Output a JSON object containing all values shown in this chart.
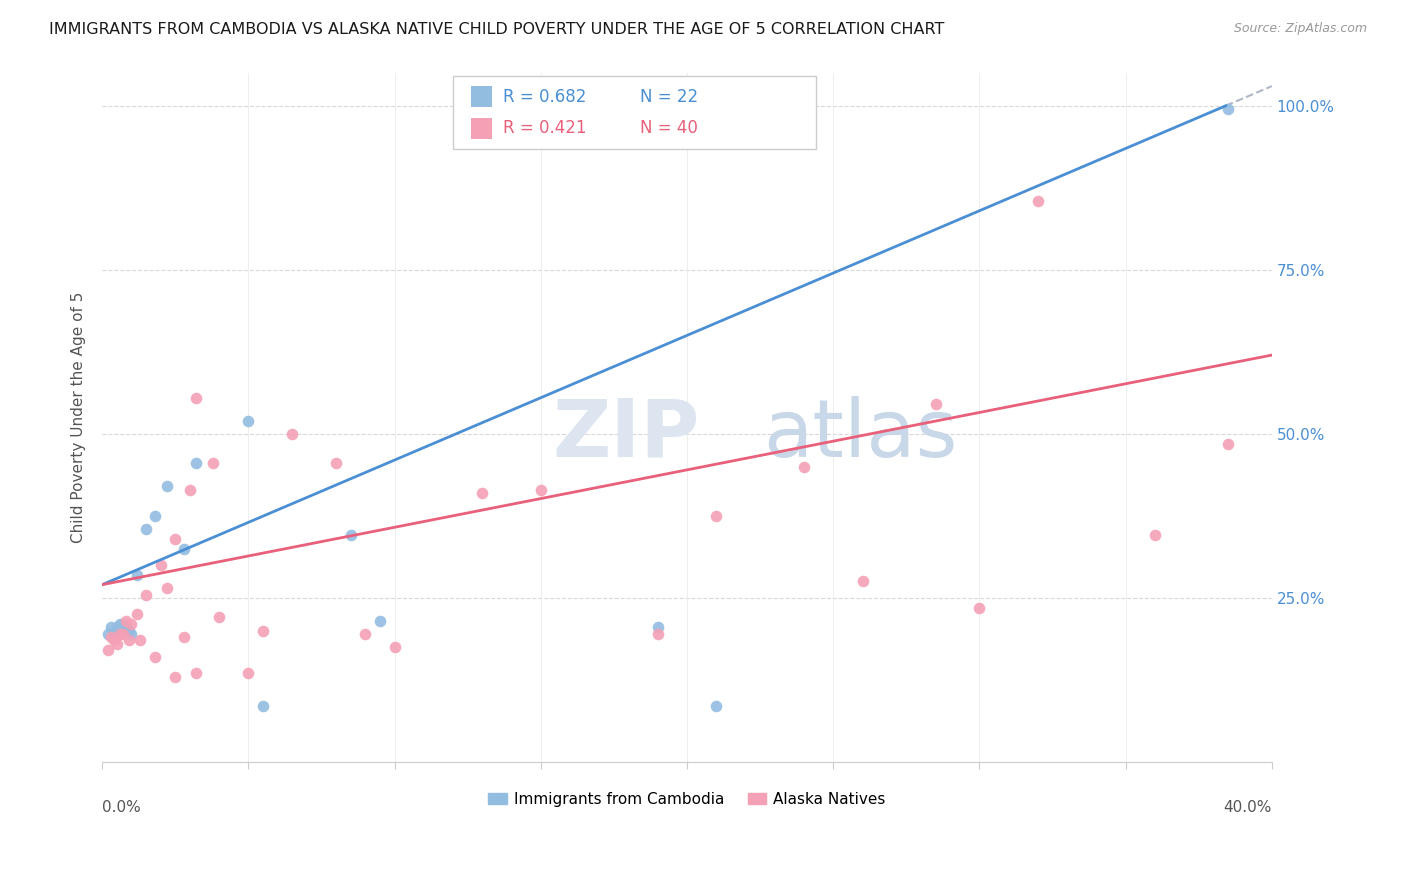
{
  "title": "IMMIGRANTS FROM CAMBODIA VS ALASKA NATIVE CHILD POVERTY UNDER THE AGE OF 5 CORRELATION CHART",
  "source": "Source: ZipAtlas.com",
  "ylabel": "Child Poverty Under the Age of 5",
  "legend_label1": "Immigrants from Cambodia",
  "legend_label2": "Alaska Natives",
  "r1": "0.682",
  "n1": "22",
  "r2": "0.421",
  "n2": "40",
  "blue_color": "#92bce0",
  "pink_color": "#f4a0b5",
  "blue_line_color": "#4a8fd4",
  "pink_line_color": "#e8607a",
  "dashed_line_color": "#b0b8c8",
  "xlim": [
    0.0,
    0.4
  ],
  "ylim": [
    0.0,
    1.05
  ],
  "blue_x": [
    0.002,
    0.003,
    0.004,
    0.005,
    0.006,
    0.007,
    0.008,
    0.009,
    0.01,
    0.012,
    0.015,
    0.018,
    0.022,
    0.028,
    0.032,
    0.05,
    0.055,
    0.085,
    0.095,
    0.19,
    0.21,
    0.385
  ],
  "blue_y": [
    0.195,
    0.205,
    0.195,
    0.205,
    0.21,
    0.21,
    0.205,
    0.2,
    0.195,
    0.285,
    0.355,
    0.375,
    0.42,
    0.325,
    0.455,
    0.52,
    0.085,
    0.345,
    0.215,
    0.205,
    0.085,
    0.995
  ],
  "pink_x": [
    0.002,
    0.003,
    0.004,
    0.005,
    0.006,
    0.007,
    0.008,
    0.009,
    0.01,
    0.012,
    0.013,
    0.015,
    0.018,
    0.02,
    0.022,
    0.025,
    0.028,
    0.03,
    0.032,
    0.038,
    0.04,
    0.055,
    0.065,
    0.08,
    0.09,
    0.1,
    0.13,
    0.15,
    0.19,
    0.21,
    0.24,
    0.26,
    0.285,
    0.3,
    0.32,
    0.36,
    0.385,
    0.025,
    0.032,
    0.05
  ],
  "pink_y": [
    0.17,
    0.19,
    0.185,
    0.18,
    0.195,
    0.195,
    0.215,
    0.185,
    0.21,
    0.225,
    0.185,
    0.255,
    0.16,
    0.3,
    0.265,
    0.34,
    0.19,
    0.415,
    0.555,
    0.455,
    0.22,
    0.2,
    0.5,
    0.455,
    0.195,
    0.175,
    0.41,
    0.415,
    0.195,
    0.375,
    0.45,
    0.275,
    0.545,
    0.235,
    0.855,
    0.345,
    0.485,
    0.13,
    0.135,
    0.135
  ]
}
